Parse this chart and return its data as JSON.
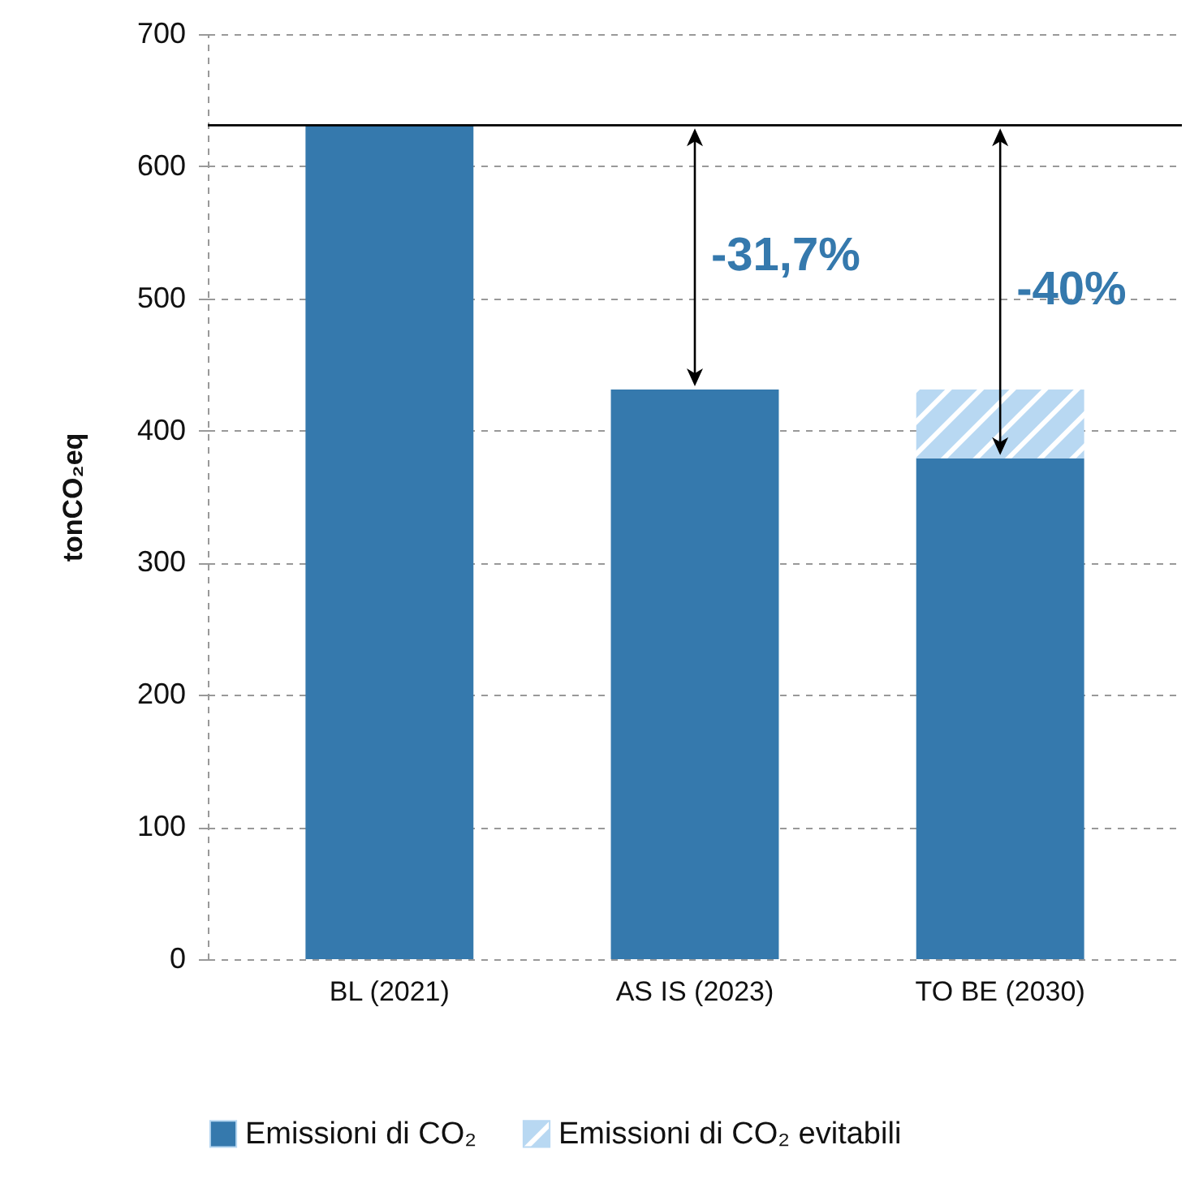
{
  "chart_data": {
    "type": "bar",
    "stacked": true,
    "categories": [
      "BL (2021)",
      "AS IS (2023)",
      "TO BE (2030)"
    ],
    "series": [
      {
        "name": "Emissioni di CO₂",
        "color": "#3579ad",
        "values": [
          631,
          431,
          379
        ]
      },
      {
        "name": "Emissioni di CO₂ evitabili",
        "color": "#b8d8f2",
        "values": [
          null,
          null,
          52
        ]
      }
    ],
    "ylabel": "tonCO₂eq",
    "ylim": [
      0,
      700
    ],
    "yticks": [
      0,
      100,
      200,
      300,
      400,
      500,
      600,
      700
    ],
    "grid": "y",
    "legend": "bottom",
    "ref_lines": [
      {
        "axis": "y",
        "value": 631,
        "color": "#000000"
      }
    ],
    "annotations": [
      "-31,7%",
      "-40%"
    ]
  }
}
